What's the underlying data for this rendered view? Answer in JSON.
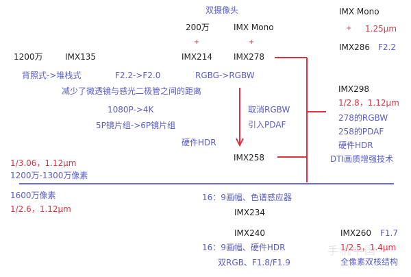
{
  "title": "双摄像头",
  "top": {
    "res_200": "200万",
    "imx_mono": "IMX Mono",
    "plus": "+",
    "res_1200": "1200万",
    "imx135": "IMX135",
    "imx214": "IMX214",
    "imx278": "IMX278"
  },
  "right_top": {
    "imx_mono": "IMX Mono",
    "plus": "+",
    "pixel": "1.25μm",
    "imx286": "IMX286",
    "aperture": "F2.2"
  },
  "changes": {
    "bsi_to_stacked": "背照式->堆栈式",
    "aperture": "F2.2->F2.0",
    "rgbg_rgbw": "RGBG->RGBW",
    "lens_distance": "减少了微透镜与感光二极管之间的距离",
    "video": "1080P->4K",
    "lens_group": "5P镜片组->6P镜片组",
    "hdr": "硬件HDR",
    "cancel_rgbw": "取消RGBW",
    "add_pdaf": "引入PDAF",
    "imx258": "IMX258"
  },
  "imx298": {
    "name": "IMX298",
    "spec": "1/2.8，1.12μm",
    "f1": "278的RGBW",
    "f2": "258的PDAF",
    "f3": "硬件HDR",
    "f4": "DTI画质增强技术"
  },
  "left": {
    "spec_12": "1/3.06，1.12μm",
    "range_12": "1200万-1300万像素",
    "range_16": "1600万像素",
    "spec_16": "1/2.6，1.12μm"
  },
  "bottom": {
    "imx234_desc": "16：9画幅、色谱感应器",
    "imx234": "IMX234",
    "imx240": "IMX240",
    "imx240_desc1": "16：9画幅、硬件HDR",
    "imx240_desc2": "双RGB、F1.8/F1.9",
    "imx260": "IMX260",
    "imx260_aperture": "F1.7",
    "imx260_spec": "1/2.5，1.4μm",
    "imx260_desc": "全像素双核结构"
  },
  "watermark": "手机中国",
  "colors": {
    "black": "#222222",
    "blue": "#5a5cc8",
    "red": "#e03040",
    "divider": "#6a6ad8"
  }
}
